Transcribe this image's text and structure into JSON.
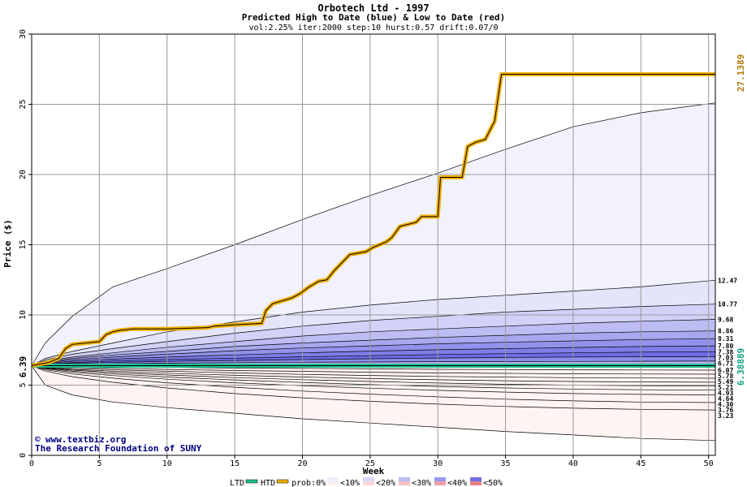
{
  "chart_data": {
    "type": "area",
    "title": "Orbotech Ltd - 1997",
    "subtitle": "Predicted High to Date (blue) &  Low to Date (red)",
    "params": "vol:2.25% iter:2000 step:10 hurst:0.57 drift:0.07/0",
    "xlabel": "Week",
    "ylabel": "Price ($)",
    "xlim": [
      0,
      50.5
    ],
    "ylim": [
      0,
      30
    ],
    "xticks": [
      0,
      5,
      10,
      15,
      20,
      25,
      30,
      35,
      40,
      45,
      50
    ],
    "yticks": [
      0,
      5,
      10,
      15,
      20,
      25,
      30
    ],
    "grid": true,
    "start_price": 6.39,
    "start_label": "6.39",
    "right_labels": {
      "htd_final": "27.1389",
      "ltd_final": "6.38889"
    },
    "high_bands": {
      "weeks": [
        0,
        1,
        3,
        6,
        10,
        15,
        20,
        25,
        30,
        35,
        40,
        45,
        50.5
      ],
      "series": [
        {
          "label": "",
          "values": [
            6.39,
            8.0,
            9.9,
            12.0,
            13.3,
            15.0,
            16.8,
            18.5,
            20.1,
            21.8,
            23.4,
            24.4,
            25.1
          ]
        },
        {
          "label": "12.47",
          "values": [
            6.39,
            6.9,
            7.4,
            8.0,
            8.8,
            9.5,
            10.2,
            10.7,
            11.1,
            11.4,
            11.7,
            12.0,
            12.47
          ]
        },
        {
          "label": "10.77",
          "values": [
            6.39,
            6.8,
            7.2,
            7.6,
            8.1,
            8.7,
            9.2,
            9.6,
            9.9,
            10.2,
            10.4,
            10.6,
            10.77
          ]
        },
        {
          "label": "9.68",
          "values": [
            6.39,
            6.7,
            7.0,
            7.3,
            7.7,
            8.1,
            8.5,
            8.8,
            9.0,
            9.2,
            9.4,
            9.55,
            9.68
          ]
        },
        {
          "label": "8.86",
          "values": [
            6.39,
            6.65,
            6.9,
            7.15,
            7.4,
            7.75,
            8.0,
            8.2,
            8.4,
            8.55,
            8.7,
            8.8,
            8.86
          ]
        },
        {
          "label": "8.31",
          "values": [
            6.39,
            6.6,
            6.8,
            7.0,
            7.2,
            7.45,
            7.65,
            7.8,
            7.95,
            8.05,
            8.15,
            8.25,
            8.31
          ]
        },
        {
          "label": "7.80",
          "values": [
            6.39,
            6.55,
            6.7,
            6.85,
            7.0,
            7.15,
            7.3,
            7.42,
            7.52,
            7.6,
            7.68,
            7.75,
            7.8
          ]
        },
        {
          "label": "7.38",
          "values": [
            6.39,
            6.5,
            6.6,
            6.72,
            6.83,
            6.92,
            7.02,
            7.1,
            7.18,
            7.24,
            7.3,
            7.35,
            7.38
          ]
        },
        {
          "label": "7.03",
          "values": [
            6.39,
            6.47,
            6.55,
            6.62,
            6.7,
            6.76,
            6.82,
            6.88,
            6.93,
            6.97,
            7.0,
            7.02,
            7.03
          ]
        },
        {
          "label": "6.71",
          "values": [
            6.39,
            6.43,
            6.47,
            6.52,
            6.56,
            6.6,
            6.63,
            6.65,
            6.67,
            6.68,
            6.69,
            6.7,
            6.71
          ]
        }
      ]
    },
    "low_bands": {
      "weeks": [
        0,
        1,
        3,
        6,
        10,
        15,
        20,
        25,
        30,
        35,
        40,
        45,
        50.5
      ],
      "series": [
        {
          "label": "6.07",
          "values": [
            6.39,
            6.36,
            6.33,
            6.3,
            6.26,
            6.22,
            6.19,
            6.16,
            6.13,
            6.11,
            6.09,
            6.08,
            6.07
          ]
        },
        {
          "label": "5.78",
          "values": [
            6.39,
            6.33,
            6.27,
            6.2,
            6.12,
            6.04,
            5.98,
            5.92,
            5.87,
            5.84,
            5.81,
            5.79,
            5.78
          ]
        },
        {
          "label": "5.49",
          "values": [
            6.39,
            6.3,
            6.2,
            6.1,
            5.99,
            5.87,
            5.77,
            5.69,
            5.62,
            5.57,
            5.53,
            5.51,
            5.49
          ]
        },
        {
          "label": "5.21",
          "values": [
            6.39,
            6.27,
            6.13,
            6.0,
            5.85,
            5.7,
            5.58,
            5.47,
            5.38,
            5.31,
            5.26,
            5.23,
            5.21
          ]
        },
        {
          "label": "4.93",
          "values": [
            6.39,
            6.24,
            6.07,
            5.9,
            5.72,
            5.54,
            5.39,
            5.26,
            5.15,
            5.06,
            5.0,
            4.96,
            4.93
          ]
        },
        {
          "label": "4.64",
          "values": [
            6.39,
            6.21,
            6.0,
            5.8,
            5.58,
            5.37,
            5.19,
            5.04,
            4.91,
            4.8,
            4.72,
            4.67,
            4.64
          ]
        },
        {
          "label": "4.30",
          "values": [
            6.39,
            6.17,
            5.92,
            5.68,
            5.42,
            5.17,
            4.96,
            4.78,
            4.63,
            4.5,
            4.4,
            4.34,
            4.3
          ]
        },
        {
          "label": "3.76",
          "values": [
            6.39,
            6.1,
            5.8,
            5.5,
            5.17,
            4.85,
            4.58,
            4.36,
            4.17,
            4.0,
            3.88,
            3.8,
            3.76
          ]
        },
        {
          "label": "3.23",
          "values": [
            6.39,
            6.0,
            5.6,
            5.2,
            4.8,
            4.4,
            4.1,
            3.85,
            3.65,
            3.48,
            3.36,
            3.28,
            3.23
          ]
        },
        {
          "label": "",
          "values": [
            6.39,
            5.0,
            4.3,
            3.8,
            3.4,
            3.0,
            2.6,
            2.3,
            2.0,
            1.7,
            1.45,
            1.2,
            1.05
          ]
        }
      ]
    },
    "htd_line": {
      "name": "HTD",
      "color": "#f0b000",
      "weeks": [
        0,
        1.2,
        2,
        2.5,
        3,
        5,
        5.5,
        6,
        6.5,
        7.5,
        10,
        13,
        13.5,
        15,
        17,
        17.3,
        17.8,
        18.5,
        19.2,
        19.8,
        20.5,
        21.2,
        21.8,
        22.3,
        23.5,
        24.7,
        25.2,
        26.2,
        26.6,
        27.2,
        28.4,
        28.8,
        30,
        30.2,
        31.8,
        32.2,
        32.8,
        33.5,
        34.2,
        34.7,
        50.5
      ],
      "values": [
        6.39,
        6.6,
        6.9,
        7.6,
        7.9,
        8.1,
        8.6,
        8.8,
        8.9,
        9.0,
        9.0,
        9.1,
        9.2,
        9.3,
        9.4,
        10.3,
        10.8,
        11.0,
        11.2,
        11.5,
        12.0,
        12.4,
        12.5,
        13.1,
        14.3,
        14.5,
        14.8,
        15.2,
        15.5,
        16.3,
        16.6,
        17.0,
        17.0,
        19.8,
        19.8,
        22.0,
        22.3,
        22.5,
        23.8,
        27.1389,
        27.1389
      ]
    },
    "ltd_line": {
      "name": "LTD",
      "color": "#20c090",
      "weeks": [
        0,
        50.5
      ],
      "values": [
        6.38889,
        6.38889
      ]
    },
    "legend": {
      "placement": "bottom-center",
      "items": [
        {
          "label": "LTD",
          "kind": "line",
          "color": "#20c090"
        },
        {
          "label": "HTD",
          "kind": "line",
          "color": "#f0b000"
        },
        {
          "label": "prob:0%",
          "kind": "text"
        },
        {
          "label": "<10%",
          "kind": "swatch",
          "color_top": "#eeeeff",
          "color_bottom": "#fff0f0"
        },
        {
          "label": "<20%",
          "kind": "swatch",
          "color_top": "#d8d8fa",
          "color_bottom": "#fcd8dc"
        },
        {
          "label": "<30%",
          "kind": "swatch",
          "color_top": "#bbbbf4",
          "color_bottom": "#f8c0c4"
        },
        {
          "label": "<40%",
          "kind": "swatch",
          "color_top": "#9999ee",
          "color_bottom": "#f0a0a8"
        },
        {
          "label": "<50%",
          "kind": "swatch",
          "color_top": "#7070e6",
          "color_bottom": "#e88088"
        }
      ]
    },
    "colors": {
      "high_fills": [
        "#f2f2ff",
        "#e4e4fb",
        "#d2d2f8",
        "#bdbdf4",
        "#a8a8f0",
        "#9292ec",
        "#7e7ee8",
        "#6c6ce4",
        "#8c8cec",
        "#b4b4f2"
      ],
      "low_fills": [
        "#f2a8b0",
        "#ee9aa2",
        "#ec9098",
        "#ee9ca4",
        "#f2acb2",
        "#f4bcc0",
        "#f7cdd0",
        "#fadde0",
        "#fdecec",
        "#fff4f2"
      ],
      "grid": "#999999"
    }
  },
  "credits": {
    "line1": "www.textbiz.org",
    "line2": "The Research Foundation of SUNY"
  }
}
